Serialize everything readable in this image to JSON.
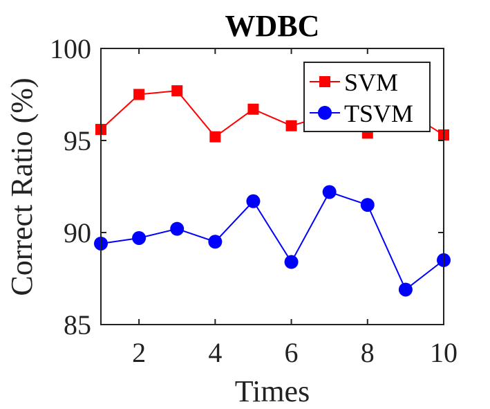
{
  "chart_data": {
    "type": "line",
    "title": "WDBC",
    "xlabel": "Times",
    "ylabel": "Correct Ratio (%)",
    "xlim": [
      1,
      10
    ],
    "ylim": [
      85,
      100
    ],
    "x": [
      1,
      2,
      3,
      4,
      5,
      6,
      7,
      8,
      9,
      10
    ],
    "xticks": [
      2,
      4,
      6,
      8,
      10
    ],
    "yticks": [
      85,
      90,
      95,
      100
    ],
    "grid": false,
    "legend_position": "top-right",
    "series": [
      {
        "name": "SVM",
        "color": "#ff0000",
        "marker": "square",
        "values": [
          95.6,
          97.5,
          97.7,
          95.2,
          96.7,
          95.8,
          96.4,
          95.4,
          96.6,
          95.3
        ]
      },
      {
        "name": "TSVM",
        "color": "#0000ff",
        "marker": "circle",
        "values": [
          89.4,
          89.7,
          90.2,
          89.5,
          91.7,
          88.4,
          92.2,
          91.5,
          86.9,
          88.5
        ]
      }
    ]
  }
}
